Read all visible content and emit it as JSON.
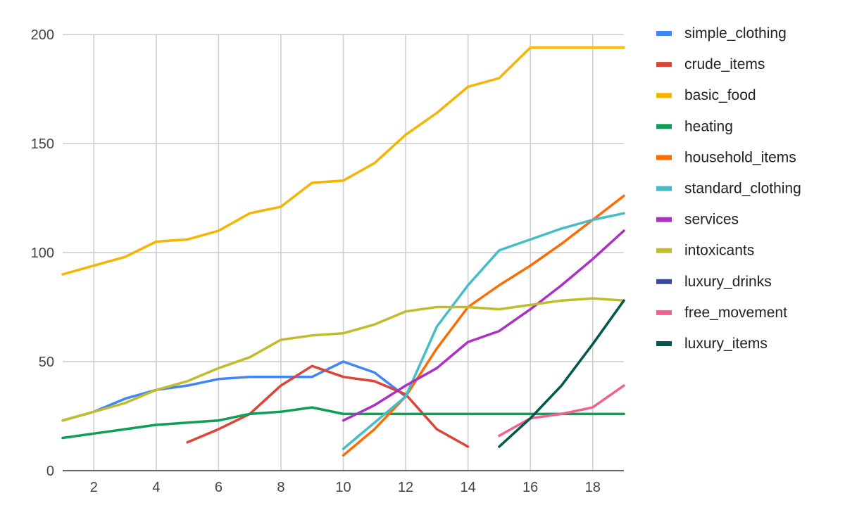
{
  "chart_data": {
    "type": "line",
    "title": "",
    "xlabel": "",
    "ylabel": "",
    "xlim": [
      1,
      19
    ],
    "ylim": [
      0,
      200
    ],
    "x_ticks": [
      2,
      4,
      6,
      8,
      10,
      12,
      14,
      16,
      18
    ],
    "y_ticks": [
      0,
      50,
      100,
      150,
      200
    ],
    "grid": true,
    "legend_position": "right",
    "x": [
      1,
      2,
      3,
      4,
      5,
      6,
      7,
      8,
      9,
      10,
      11,
      12,
      13,
      14,
      15,
      16,
      17,
      18,
      19
    ],
    "series": [
      {
        "name": "simple_clothing",
        "color": "#4285F4",
        "values": [
          23,
          27,
          33,
          37,
          39,
          42,
          43,
          43,
          43,
          50,
          45,
          34,
          null,
          null,
          null,
          null,
          null,
          null,
          null
        ]
      },
      {
        "name": "crude_items",
        "color": "#DB4437",
        "values": [
          null,
          null,
          null,
          null,
          13,
          19,
          26,
          39,
          48,
          43,
          41,
          35,
          19,
          11,
          null,
          null,
          null,
          null,
          null
        ]
      },
      {
        "name": "basic_food",
        "color": "#F4B400",
        "values": [
          90,
          94,
          98,
          105,
          106,
          110,
          118,
          121,
          132,
          133,
          141,
          154,
          164,
          176,
          180,
          194,
          194,
          194,
          194
        ]
      },
      {
        "name": "heating",
        "color": "#0F9D58",
        "values": [
          15,
          17,
          19,
          21,
          22,
          23,
          26,
          27,
          29,
          26,
          26,
          26,
          26,
          26,
          26,
          26,
          26,
          26,
          26
        ]
      },
      {
        "name": "household_items",
        "color": "#FF6D00",
        "values": [
          null,
          null,
          null,
          null,
          null,
          null,
          null,
          null,
          null,
          7,
          19,
          34,
          56,
          75,
          85,
          94,
          104,
          115,
          126
        ]
      },
      {
        "name": "standard_clothing",
        "color": "#46BDC6",
        "values": [
          null,
          null,
          null,
          null,
          null,
          null,
          null,
          null,
          null,
          10,
          22,
          34,
          66,
          85,
          101,
          106,
          111,
          115,
          118
        ]
      },
      {
        "name": "services",
        "color": "#AB30C4",
        "values": [
          null,
          null,
          null,
          null,
          null,
          null,
          null,
          null,
          null,
          23,
          30,
          39,
          47,
          59,
          64,
          74,
          85,
          97,
          110
        ]
      },
      {
        "name": "intoxicants",
        "color": "#C0BC2B",
        "values": [
          23,
          27,
          31,
          37,
          41,
          47,
          52,
          60,
          62,
          63,
          67,
          73,
          75,
          75,
          74,
          76,
          78,
          79,
          78
        ]
      },
      {
        "name": "luxury_drinks",
        "color": "#3949AB",
        "values": [
          null,
          null,
          null,
          null,
          null,
          null,
          null,
          null,
          null,
          null,
          null,
          null,
          null,
          null,
          null,
          null,
          null,
          null,
          null
        ]
      },
      {
        "name": "free_movement",
        "color": "#F06292",
        "values": [
          null,
          null,
          null,
          null,
          null,
          null,
          null,
          null,
          null,
          null,
          null,
          null,
          null,
          null,
          16,
          24,
          26,
          29,
          39
        ]
      },
      {
        "name": "luxury_items",
        "color": "#00574B",
        "values": [
          null,
          null,
          null,
          null,
          null,
          null,
          null,
          null,
          null,
          null,
          null,
          null,
          null,
          null,
          11,
          24,
          39,
          58,
          78
        ]
      }
    ]
  }
}
